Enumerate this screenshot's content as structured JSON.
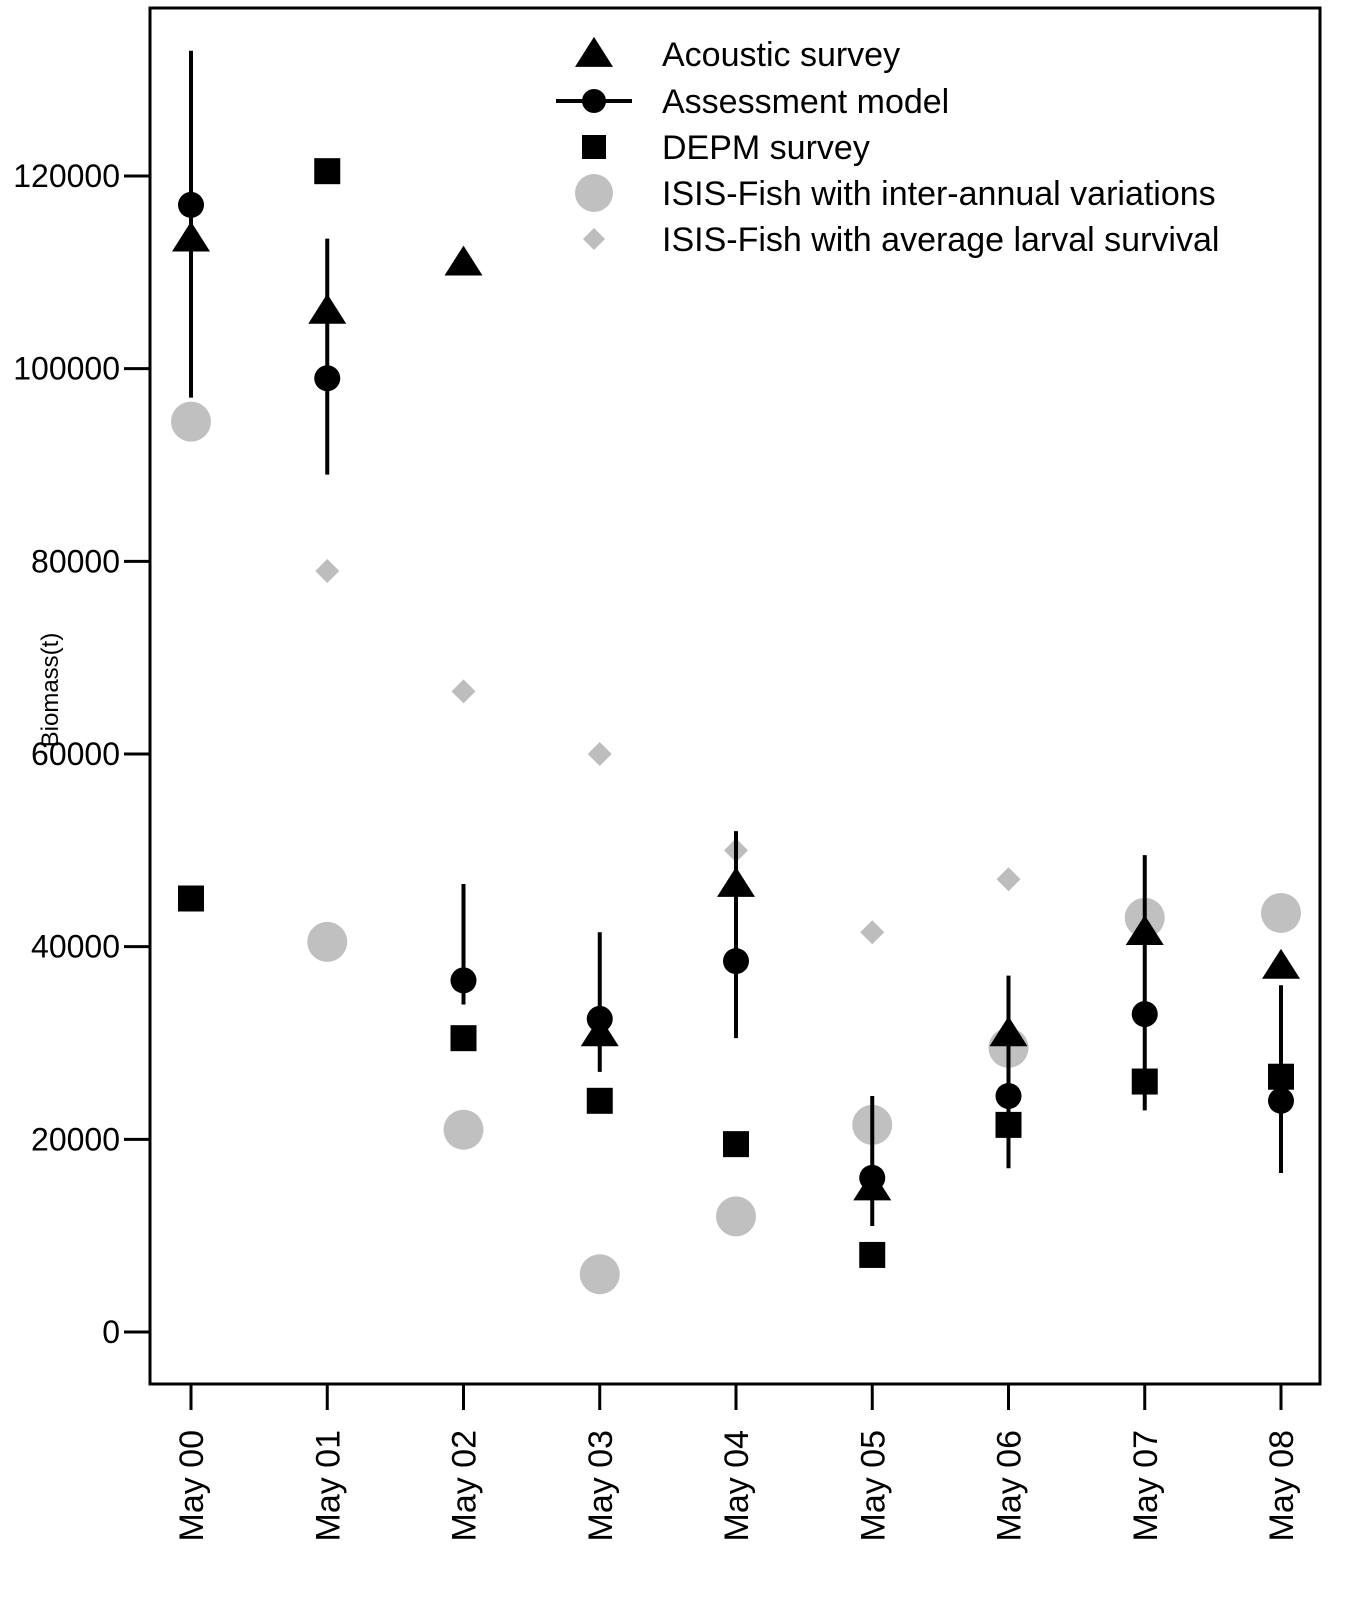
{
  "chart_data": {
    "type": "scatter",
    "title": "",
    "xlabel": "",
    "ylabel": "Biomass(t)",
    "categories": [
      "May 00",
      "May 01",
      "May 02",
      "May 03",
      "May 04",
      "May 05",
      "May 06",
      "May 07",
      "May 08"
    ],
    "ylim": [
      -5000,
      137000
    ],
    "yticks": [
      0,
      20000,
      40000,
      60000,
      80000,
      100000,
      120000
    ],
    "ytick_labels": [
      "0",
      "20000",
      "40000",
      "60000",
      "80000",
      "100000",
      "120000"
    ],
    "grid": false,
    "legend_position": "top-right",
    "series": [
      {
        "name": "Acoustic survey",
        "marker": "triangle",
        "color": "#000000",
        "values": [
          113500,
          106000,
          111000,
          31000,
          46500,
          15000,
          31000,
          41500,
          38000
        ]
      },
      {
        "name": "Assessment model",
        "marker": "circle-with-errorbar",
        "color": "#000000",
        "values": [
          117000,
          99000,
          36500,
          32500,
          38500,
          16000,
          24500,
          33000,
          24000
        ],
        "lower": [
          97000,
          89000,
          34000,
          27000,
          30500,
          11000,
          17000,
          23000,
          16500
        ],
        "upper": [
          133000,
          113500,
          46500,
          41500,
          52000,
          24500,
          37000,
          49500,
          36000
        ]
      },
      {
        "name": "DEPM survey",
        "marker": "square",
        "color": "#000000",
        "values": [
          45000,
          120500,
          30500,
          24000,
          19500,
          8000,
          21500,
          26000,
          26500
        ]
      },
      {
        "name": "ISIS-Fish with inter-annual variations",
        "marker": "large-circle",
        "color": "#c0c0c0",
        "values": [
          94500,
          40500,
          21000,
          6000,
          12000,
          21500,
          29500,
          43000,
          43500
        ]
      },
      {
        "name": "ISIS-Fish with average larval survival",
        "marker": "diamond",
        "color": "#bdbdbd",
        "values": [
          null,
          79000,
          66500,
          60000,
          50000,
          41500,
          47000,
          null,
          null
        ]
      }
    ]
  }
}
